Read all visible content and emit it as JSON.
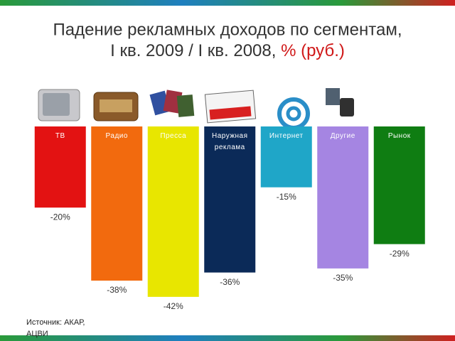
{
  "chart_data": {
    "type": "bar",
    "title": "Падение рекламных доходов по сегментам,",
    "subtitle": "I кв. 2009 / I кв. 2008,",
    "title_highlight": "% (руб.)",
    "categories": [
      "ТВ",
      "Радио",
      "Пресса",
      "Наружная реклама",
      "Интернет",
      "Другие",
      "Рынок"
    ],
    "values": [
      -20,
      -38,
      -42,
      -36,
      -15,
      -35,
      -29
    ],
    "value_labels": [
      "-20%",
      "-38%",
      "-42%",
      "-36%",
      "-15%",
      "-35%",
      "-29%"
    ],
    "colors": [
      "#e31212",
      "#f26a0e",
      "#e8e600",
      "#0b2a58",
      "#1fa6c8",
      "#a585e2",
      "#0f7d12"
    ],
    "ylim": [
      -45,
      0
    ],
    "source": "Источник: АКАР, АЦВИ"
  }
}
